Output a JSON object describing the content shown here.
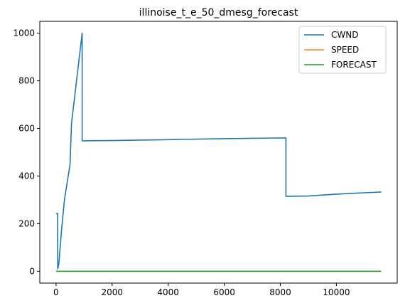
{
  "chart_data": {
    "type": "line",
    "title": "illinoise_t_e_50_dmesg_forecast",
    "xlabel": "",
    "ylabel": "",
    "xlim": [
      -580,
      12170
    ],
    "ylim": [
      -50,
      1050
    ],
    "xticks": [
      0,
      2000,
      4000,
      6000,
      8000,
      10000
    ],
    "yticks": [
      0,
      200,
      400,
      600,
      800,
      1000
    ],
    "grid": false,
    "legend_position": "top-right",
    "series": [
      {
        "name": "CWND",
        "color": "#1f77b4",
        "x": [
          0,
          60,
          60,
          100,
          200,
          300,
          500,
          550,
          930,
          930,
          950,
          2000,
          4000,
          6000,
          8150,
          8200,
          8200,
          9000,
          10000,
          11600
        ],
        "y": [
          242,
          242,
          10,
          30,
          180,
          300,
          450,
          620,
          1000,
          548,
          548,
          549,
          553,
          557,
          560,
          560,
          315,
          316,
          324,
          333
        ]
      },
      {
        "name": "SPEED",
        "color": "#ff7f0e",
        "x": [
          0,
          11600
        ],
        "y": [
          0,
          0
        ]
      },
      {
        "name": "FORECAST",
        "color": "#2ca02c",
        "x": [
          0,
          11600
        ],
        "y": [
          0,
          0
        ]
      }
    ]
  }
}
